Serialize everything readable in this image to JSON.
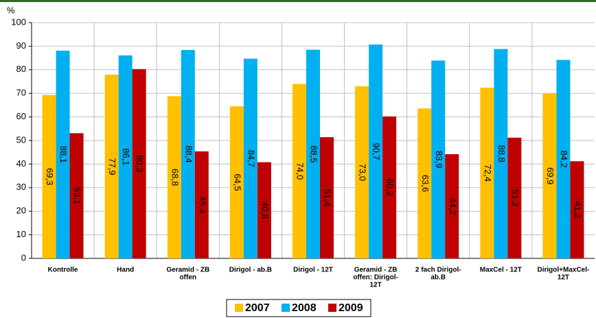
{
  "chart_data": {
    "type": "bar",
    "y_label": "%",
    "categories": [
      [
        "Kontrolle"
      ],
      [
        "Hand"
      ],
      [
        "Geramid - ZB",
        "offen"
      ],
      [
        "Dirigol - ab.B"
      ],
      [
        "Dirigol - 12T"
      ],
      [
        "Geramid - ZB",
        "offen: Dirigol-",
        "12T"
      ],
      [
        "2 fach Dirigol-",
        "ab.B"
      ],
      [
        "MaxCel - 12T"
      ],
      [
        "Dirigol+MaxCel-",
        "12T"
      ]
    ],
    "series": [
      {
        "name": "2007",
        "color": "#ffc000",
        "values": [
          69.3,
          77.9,
          68.8,
          64.5,
          74.0,
          73.0,
          63.6,
          72.4,
          69.9
        ],
        "value_labels": [
          "69,3",
          "77,9",
          "68,8",
          "64,5",
          "74,0",
          "73,0",
          "63,6",
          "72,4",
          "69,9"
        ]
      },
      {
        "name": "2008",
        "color": "#00b0f0",
        "values": [
          88.1,
          86.1,
          88.4,
          84.7,
          88.5,
          90.7,
          83.9,
          88.8,
          84.2
        ],
        "value_labels": [
          "88,1",
          "86,1",
          "88,4",
          "84,7",
          "88,5",
          "90,7",
          "83,9",
          "88,8",
          "84,2"
        ]
      },
      {
        "name": "2009",
        "color": "#c00000",
        "values": [
          53.1,
          80.3,
          45.4,
          40.8,
          51.4,
          60.2,
          44.2,
          51.2,
          41.2
        ],
        "value_labels": [
          "53,1",
          "80,3",
          "45,4",
          "40,8",
          "51,4",
          "60,2",
          "44,2",
          "51,2",
          "41,2"
        ]
      }
    ],
    "ylim": [
      0,
      100
    ],
    "yticks": [
      0,
      10,
      20,
      30,
      40,
      50,
      60,
      70,
      80,
      90,
      100
    ],
    "grid": true
  }
}
